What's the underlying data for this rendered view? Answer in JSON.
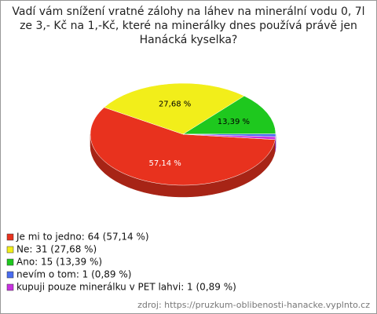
{
  "chart_data": {
    "type": "pie3d",
    "title": "Vadí vám snížení vratné zálohy na láhev na minerální vodu 0, 7l ze 3,- Kč na 1,-Kč, které na minerálky dnes používá právě jen Hanácká kyselka?",
    "categories": [
      "Je mi to jedno: 64 (57,14 %)",
      "Ne: 31 (27,68 %)",
      "Ano: 15 (13,39 %)",
      "nevím o tom: 1 (0,89 %)",
      "kupuji pouze minerálku v PET lahvi: 1 (0,89 %)"
    ],
    "values": [
      57.14,
      27.68,
      13.39,
      0.89,
      0.89
    ],
    "value_labels": [
      "57,14 %",
      "27,68 %",
      "13,39 %",
      null,
      null
    ],
    "colors": [
      "#e8321e",
      "#f2ee1a",
      "#1ec81e",
      "#4a6cf0",
      "#c832e0"
    ],
    "source": "zdroj: https://pruzkum-oblibenosti-hanacke.vyplnto.cz"
  }
}
